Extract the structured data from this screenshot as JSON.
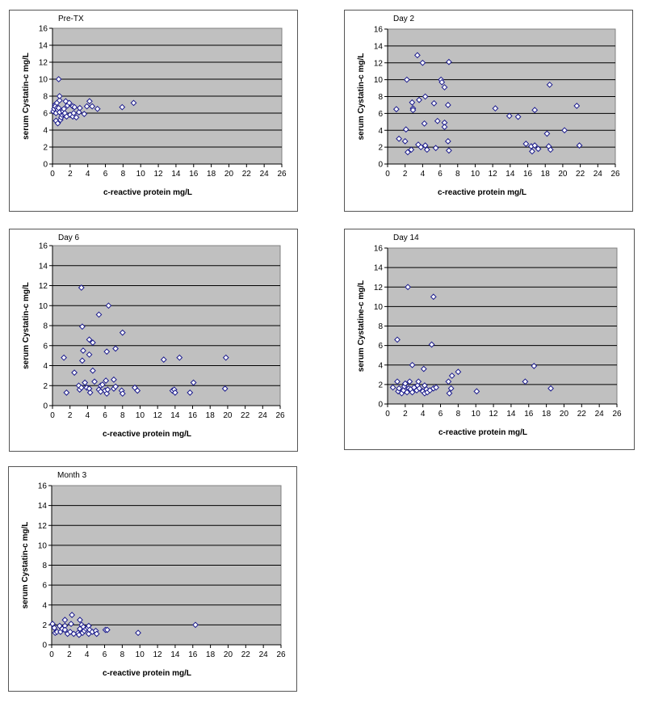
{
  "chart_data": [
    {
      "type": "scatter",
      "title": "Pre-TX",
      "xlabel": "c-reactive protein mg/L",
      "ylabel": "serum Cystatin-c mg/L",
      "xlim": [
        0,
        26
      ],
      "ylim": [
        0,
        16
      ],
      "xticks": [
        0,
        2,
        4,
        6,
        8,
        10,
        12,
        14,
        16,
        18,
        20,
        22,
        24,
        26
      ],
      "yticks": [
        0,
        2,
        4,
        6,
        8,
        10,
        12,
        14,
        16
      ],
      "grid": true,
      "points": [
        [
          0.1,
          6.2
        ],
        [
          0.2,
          6.5
        ],
        [
          0.3,
          7.0
        ],
        [
          0.3,
          6.8
        ],
        [
          0.4,
          6.0
        ],
        [
          0.4,
          5.1
        ],
        [
          0.5,
          6.6
        ],
        [
          0.5,
          7.2
        ],
        [
          0.6,
          6.4
        ],
        [
          0.6,
          4.8
        ],
        [
          0.7,
          10.0
        ],
        [
          0.7,
          6.6
        ],
        [
          0.8,
          7.5
        ],
        [
          0.8,
          8.0
        ],
        [
          0.8,
          6.1
        ],
        [
          0.9,
          5.2
        ],
        [
          1.0,
          5.5
        ],
        [
          1.1,
          5.8
        ],
        [
          1.2,
          6.2
        ],
        [
          1.3,
          6.5
        ],
        [
          1.3,
          5.9
        ],
        [
          1.4,
          6.0
        ],
        [
          1.5,
          7.4
        ],
        [
          1.6,
          5.6
        ],
        [
          1.7,
          6.9
        ],
        [
          1.9,
          7.2
        ],
        [
          2.0,
          5.8
        ],
        [
          2.3,
          5.6
        ],
        [
          2.3,
          6.8
        ],
        [
          2.4,
          6.0
        ],
        [
          2.5,
          6.7
        ],
        [
          2.7,
          5.5
        ],
        [
          3.0,
          6.1
        ],
        [
          3.1,
          6.6
        ],
        [
          3.6,
          5.9
        ],
        [
          3.9,
          6.8
        ],
        [
          4.2,
          7.4
        ],
        [
          4.5,
          6.8
        ],
        [
          5.1,
          6.5
        ],
        [
          7.9,
          6.7
        ],
        [
          9.2,
          7.2
        ]
      ]
    },
    {
      "type": "scatter",
      "title": "Day 2",
      "xlabel": "c-reactive protein mg/L",
      "ylabel": "serum Cystatin-c mg/L",
      "xlim": [
        0,
        26
      ],
      "ylim": [
        0,
        16
      ],
      "xticks": [
        0,
        2,
        4,
        6,
        8,
        10,
        12,
        14,
        16,
        18,
        20,
        22,
        24,
        26
      ],
      "yticks": [
        0,
        2,
        4,
        6,
        8,
        10,
        12,
        14,
        16
      ],
      "grid": true,
      "points": [
        [
          1.0,
          6.5
        ],
        [
          1.3,
          3.0
        ],
        [
          2.0,
          2.7
        ],
        [
          2.1,
          4.1
        ],
        [
          2.2,
          10.0
        ],
        [
          2.3,
          1.4
        ],
        [
          2.7,
          1.7
        ],
        [
          2.8,
          7.3
        ],
        [
          2.9,
          6.6
        ],
        [
          2.9,
          6.4
        ],
        [
          3.4,
          12.9
        ],
        [
          3.5,
          2.3
        ],
        [
          3.6,
          7.6
        ],
        [
          3.8,
          2.0
        ],
        [
          4.0,
          12.0
        ],
        [
          4.2,
          4.8
        ],
        [
          4.3,
          2.2
        ],
        [
          4.3,
          8.0
        ],
        [
          4.5,
          1.7
        ],
        [
          5.3,
          7.2
        ],
        [
          5.5,
          1.9
        ],
        [
          5.7,
          5.1
        ],
        [
          6.1,
          10.0
        ],
        [
          6.2,
          9.7
        ],
        [
          6.5,
          4.9
        ],
        [
          6.5,
          9.1
        ],
        [
          6.5,
          4.4
        ],
        [
          6.9,
          2.7
        ],
        [
          6.9,
          7.0
        ],
        [
          7.0,
          12.1
        ],
        [
          7.0,
          1.6
        ],
        [
          12.3,
          6.6
        ],
        [
          13.9,
          5.7
        ],
        [
          14.9,
          5.6
        ],
        [
          15.8,
          2.4
        ],
        [
          16.4,
          2.1
        ],
        [
          16.5,
          1.5
        ],
        [
          16.8,
          6.4
        ],
        [
          16.8,
          2.2
        ],
        [
          17.2,
          1.8
        ],
        [
          18.2,
          3.6
        ],
        [
          18.4,
          2.1
        ],
        [
          18.5,
          9.4
        ],
        [
          18.6,
          1.7
        ],
        [
          20.2,
          4.0
        ],
        [
          21.6,
          6.9
        ],
        [
          21.9,
          2.2
        ]
      ]
    },
    {
      "type": "scatter",
      "title": "Day 6",
      "xlabel": "c-reactive protein mg/L",
      "ylabel": "serum Cystatin-c mg/L",
      "xlim": [
        0,
        26
      ],
      "ylim": [
        0,
        16
      ],
      "xticks": [
        0,
        2,
        4,
        6,
        8,
        10,
        12,
        14,
        16,
        18,
        20,
        22,
        24,
        26
      ],
      "yticks": [
        0,
        2,
        4,
        6,
        8,
        10,
        12,
        14,
        16
      ],
      "grid": true,
      "points": [
        [
          1.3,
          4.8
        ],
        [
          1.6,
          1.3
        ],
        [
          2.5,
          3.3
        ],
        [
          3.0,
          2.0
        ],
        [
          3.1,
          1.6
        ],
        [
          3.3,
          11.8
        ],
        [
          3.3,
          1.8
        ],
        [
          3.4,
          7.9
        ],
        [
          3.4,
          4.5
        ],
        [
          3.5,
          5.5
        ],
        [
          3.7,
          2.3
        ],
        [
          3.9,
          1.8
        ],
        [
          4.2,
          1.7
        ],
        [
          4.2,
          6.6
        ],
        [
          4.2,
          5.1
        ],
        [
          4.3,
          1.3
        ],
        [
          4.6,
          3.5
        ],
        [
          4.6,
          6.3
        ],
        [
          4.8,
          2.4
        ],
        [
          5.3,
          1.6
        ],
        [
          5.3,
          9.1
        ],
        [
          5.5,
          1.4
        ],
        [
          5.5,
          2.0
        ],
        [
          5.7,
          2.1
        ],
        [
          6.0,
          1.5
        ],
        [
          6.1,
          2.5
        ],
        [
          6.2,
          5.4
        ],
        [
          6.2,
          1.2
        ],
        [
          6.3,
          1.6
        ],
        [
          6.4,
          10.0
        ],
        [
          7.0,
          2.6
        ],
        [
          7.0,
          1.7
        ],
        [
          7.2,
          5.7
        ],
        [
          7.2,
          1.9
        ],
        [
          7.9,
          1.5
        ],
        [
          8.0,
          7.3
        ],
        [
          8.0,
          1.2
        ],
        [
          9.4,
          1.8
        ],
        [
          9.7,
          1.5
        ],
        [
          12.7,
          4.6
        ],
        [
          13.7,
          1.5
        ],
        [
          13.9,
          1.6
        ],
        [
          14.0,
          1.3
        ],
        [
          14.5,
          4.8
        ],
        [
          15.7,
          1.3
        ],
        [
          16.1,
          2.3
        ],
        [
          19.7,
          1.7
        ],
        [
          19.8,
          4.8
        ]
      ]
    },
    {
      "type": "scatter",
      "title": "Day 14",
      "xlabel": "c-reactive protein mg/L",
      "ylabel": "serum Cystatine-c mg/L",
      "xlim": [
        0,
        26
      ],
      "ylim": [
        0,
        16
      ],
      "xticks": [
        0,
        2,
        4,
        6,
        8,
        10,
        12,
        14,
        16,
        18,
        20,
        22,
        24,
        26
      ],
      "yticks": [
        0,
        2,
        4,
        6,
        8,
        10,
        12,
        14,
        16
      ],
      "grid": true,
      "points": [
        [
          0.6,
          1.7
        ],
        [
          1.1,
          6.6
        ],
        [
          1.1,
          2.3
        ],
        [
          1.2,
          1.3
        ],
        [
          1.3,
          1.6
        ],
        [
          1.6,
          1.1
        ],
        [
          1.8,
          1.4
        ],
        [
          1.9,
          1.8
        ],
        [
          2.0,
          2.1
        ],
        [
          2.2,
          1.2
        ],
        [
          2.3,
          12.0
        ],
        [
          2.4,
          1.6
        ],
        [
          2.5,
          2.3
        ],
        [
          2.6,
          1.5
        ],
        [
          2.8,
          4.0
        ],
        [
          2.8,
          1.2
        ],
        [
          3.0,
          1.7
        ],
        [
          3.3,
          1.4
        ],
        [
          3.4,
          1.9
        ],
        [
          3.5,
          2.3
        ],
        [
          3.6,
          1.6
        ],
        [
          4.0,
          1.3
        ],
        [
          4.1,
          3.6
        ],
        [
          4.2,
          1.9
        ],
        [
          4.2,
          1.1
        ],
        [
          4.4,
          1.5
        ],
        [
          4.5,
          1.2
        ],
        [
          4.8,
          1.4
        ],
        [
          5.0,
          6.1
        ],
        [
          5.2,
          11.0
        ],
        [
          5.2,
          1.6
        ],
        [
          5.5,
          1.7
        ],
        [
          6.9,
          2.3
        ],
        [
          7.0,
          1.1
        ],
        [
          7.2,
          1.6
        ],
        [
          7.3,
          2.9
        ],
        [
          8.0,
          3.3
        ],
        [
          10.1,
          1.3
        ],
        [
          15.6,
          2.3
        ],
        [
          16.6,
          3.9
        ],
        [
          18.5,
          1.6
        ]
      ]
    },
    {
      "type": "scatter",
      "title": "Month 3",
      "xlabel": "c-reactive protein mg/L",
      "ylabel": "serum Cystatin-c mg/L",
      "xlim": [
        0,
        26
      ],
      "ylim": [
        0,
        16
      ],
      "xticks": [
        0,
        2,
        4,
        6,
        8,
        10,
        12,
        14,
        16,
        18,
        20,
        22,
        24,
        26
      ],
      "yticks": [
        0,
        2,
        4,
        6,
        8,
        10,
        12,
        14,
        16
      ],
      "grid": true,
      "points": [
        [
          0.1,
          2.1
        ],
        [
          0.3,
          1.7
        ],
        [
          0.4,
          1.2
        ],
        [
          0.6,
          1.3
        ],
        [
          0.9,
          1.9
        ],
        [
          1.0,
          1.3
        ],
        [
          1.2,
          1.6
        ],
        [
          1.5,
          2.5
        ],
        [
          1.5,
          1.9
        ],
        [
          1.5,
          1.5
        ],
        [
          1.8,
          1.1
        ],
        [
          2.1,
          1.3
        ],
        [
          2.2,
          2.1
        ],
        [
          2.3,
          3.0
        ],
        [
          2.5,
          1.1
        ],
        [
          3.0,
          1.2
        ],
        [
          3.1,
          1.0
        ],
        [
          3.2,
          2.5
        ],
        [
          3.2,
          1.6
        ],
        [
          3.4,
          2.0
        ],
        [
          3.5,
          1.2
        ],
        [
          3.6,
          1.8
        ],
        [
          3.7,
          1.4
        ],
        [
          3.9,
          1.6
        ],
        [
          4.1,
          1.7
        ],
        [
          4.2,
          1.9
        ],
        [
          4.2,
          1.1
        ],
        [
          4.3,
          1.5
        ],
        [
          4.6,
          1.3
        ],
        [
          5.0,
          1.4
        ],
        [
          5.1,
          1.1
        ],
        [
          6.1,
          1.5
        ],
        [
          6.3,
          1.5
        ],
        [
          9.8,
          1.2
        ],
        [
          16.3,
          2.0
        ]
      ]
    }
  ],
  "colors": {
    "plot_bg": "#c0c0c0",
    "grid": "#000000",
    "marker_stroke": "#1a1a8c",
    "marker_fill": "#ffffff"
  }
}
